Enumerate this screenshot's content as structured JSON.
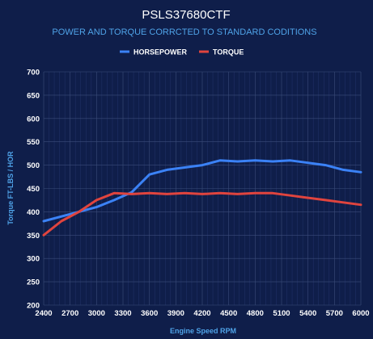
{
  "chart_data": {
    "type": "line",
    "title": "PSLS37680CTF",
    "subtitle": "POWER AND TORQUE CORRCTED TO STANDARD CODITIONS",
    "xlabel": "Engine Speed RPM",
    "ylabel": "Torque FT-LBS / HOR",
    "xlim": [
      2400,
      6000
    ],
    "ylim": [
      200,
      700
    ],
    "xticks": [
      2400,
      2700,
      3000,
      3300,
      3600,
      3900,
      4200,
      4500,
      4800,
      5100,
      5400,
      5700,
      6000
    ],
    "yticks": [
      200,
      250,
      300,
      350,
      400,
      450,
      500,
      550,
      600,
      650,
      700
    ],
    "grid": true,
    "legend": "top-center",
    "series": [
      {
        "name": "HORSEPOWER",
        "color": "#3b82f6",
        "x": [
          2400,
          2700,
          3000,
          3200,
          3400,
          3600,
          3800,
          4000,
          4200,
          4400,
          4600,
          4800,
          5000,
          5200,
          5400,
          5600,
          5800,
          6000
        ],
        "y": [
          380,
          395,
          410,
          425,
          442,
          480,
          490,
          495,
          500,
          510,
          508,
          510,
          508,
          510,
          505,
          500,
          490,
          485
        ]
      },
      {
        "name": "TORQUE",
        "color": "#e0443e",
        "x": [
          2400,
          2600,
          2800,
          3000,
          3200,
          3400,
          3600,
          3800,
          4000,
          4200,
          4400,
          4600,
          4800,
          5000,
          5200,
          5400,
          5600,
          5800,
          6000
        ],
        "y": [
          350,
          380,
          400,
          425,
          440,
          438,
          440,
          438,
          440,
          438,
          440,
          438,
          440,
          440,
          435,
          430,
          425,
          420,
          415
        ]
      }
    ]
  }
}
